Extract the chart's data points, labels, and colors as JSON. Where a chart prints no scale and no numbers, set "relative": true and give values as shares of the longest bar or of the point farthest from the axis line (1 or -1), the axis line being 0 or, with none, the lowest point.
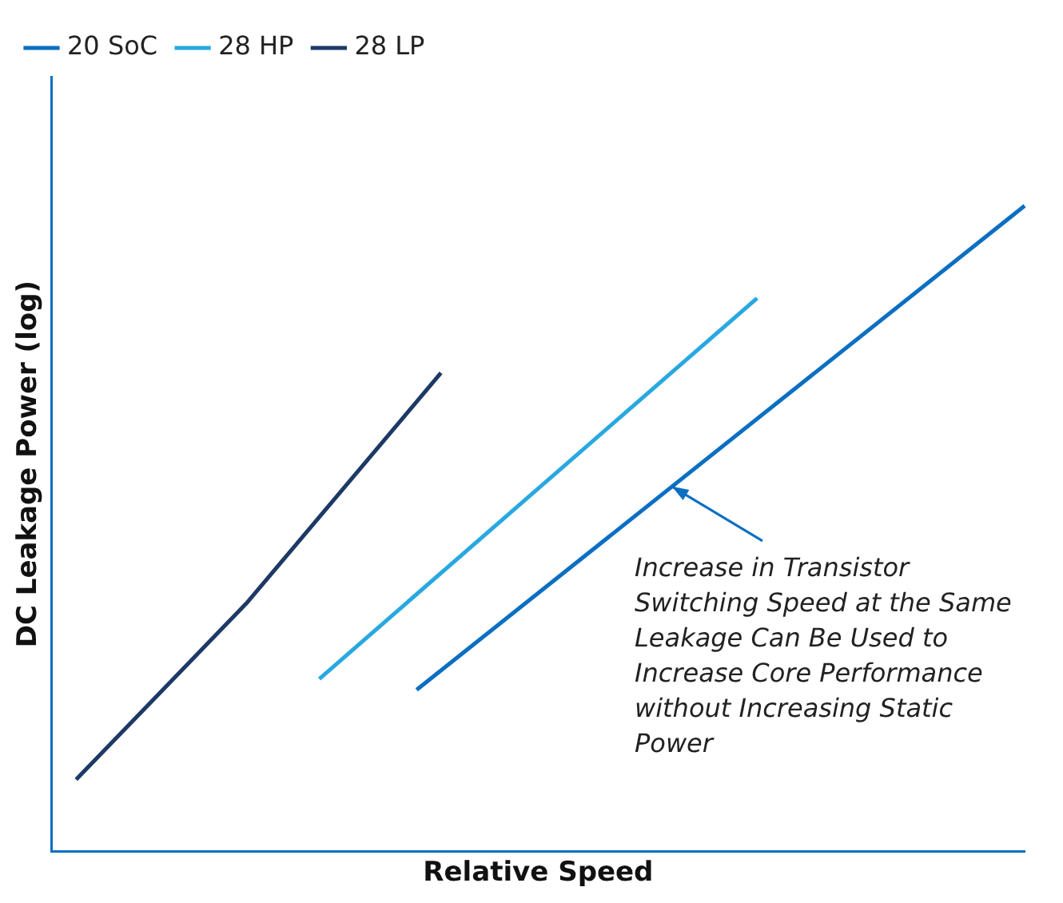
{
  "chart_data": {
    "type": "line",
    "relative": true,
    "xlabel": "Relative Speed",
    "ylabel": "DC Leakage Power (log)",
    "legend": "top left",
    "marker": "none",
    "line_style": "solid",
    "categories": [
      null,
      null,
      null,
      null,
      null,
      null,
      null,
      null,
      null,
      null,
      null,
      null,
      null,
      null,
      null,
      null,
      null,
      null,
      null,
      null,
      null,
      null,
      null,
      null,
      null,
      null,
      null,
      null,
      null,
      null,
      null,
      null,
      null,
      null,
      null,
      null,
      null,
      null,
      null,
      null,
      null
    ],
    "series": [
      {
        "name": "20 SoC",
        "color": "#0a6fc2",
        "values": [
          null,
          null,
          null,
          null,
          null,
          null,
          null,
          null,
          null,
          null,
          null,
          null,
          null,
          null,
          null,
          0.25,
          null,
          null,
          null,
          null,
          null,
          null,
          null,
          null,
          null,
          null,
          null,
          null,
          null,
          null,
          null,
          null,
          null,
          null,
          null,
          null,
          null,
          null,
          null,
          null,
          1.0
        ]
      },
      {
        "name": "28 HP",
        "color": "#29a8e0",
        "values": [
          null,
          null,
          null,
          null,
          null,
          null,
          null,
          null,
          null,
          null,
          null,
          0.267,
          null,
          null,
          null,
          null,
          null,
          null,
          null,
          null,
          null,
          null,
          null,
          null,
          null,
          null,
          null,
          null,
          null,
          0.857,
          null,
          null,
          null,
          null,
          null,
          null,
          null,
          null,
          null,
          null,
          null
        ]
      },
      {
        "name": "28 LP",
        "color": "#1d3966",
        "values": [
          null,
          0.111,
          null,
          null,
          null,
          null,
          null,
          null,
          0.384,
          null,
          null,
          null,
          null,
          null,
          null,
          null,
          0.741,
          null,
          null,
          null,
          null,
          null,
          null,
          null,
          null,
          null,
          null,
          null,
          null,
          null,
          null,
          null,
          null,
          null,
          null,
          null,
          null,
          null,
          null,
          null,
          null
        ]
      }
    ],
    "annotations": [
      "Increase in Transistor Switching Speed at the Same Leakage Can Be Used to Increase Core Performance without Increasing Static Power"
    ]
  }
}
